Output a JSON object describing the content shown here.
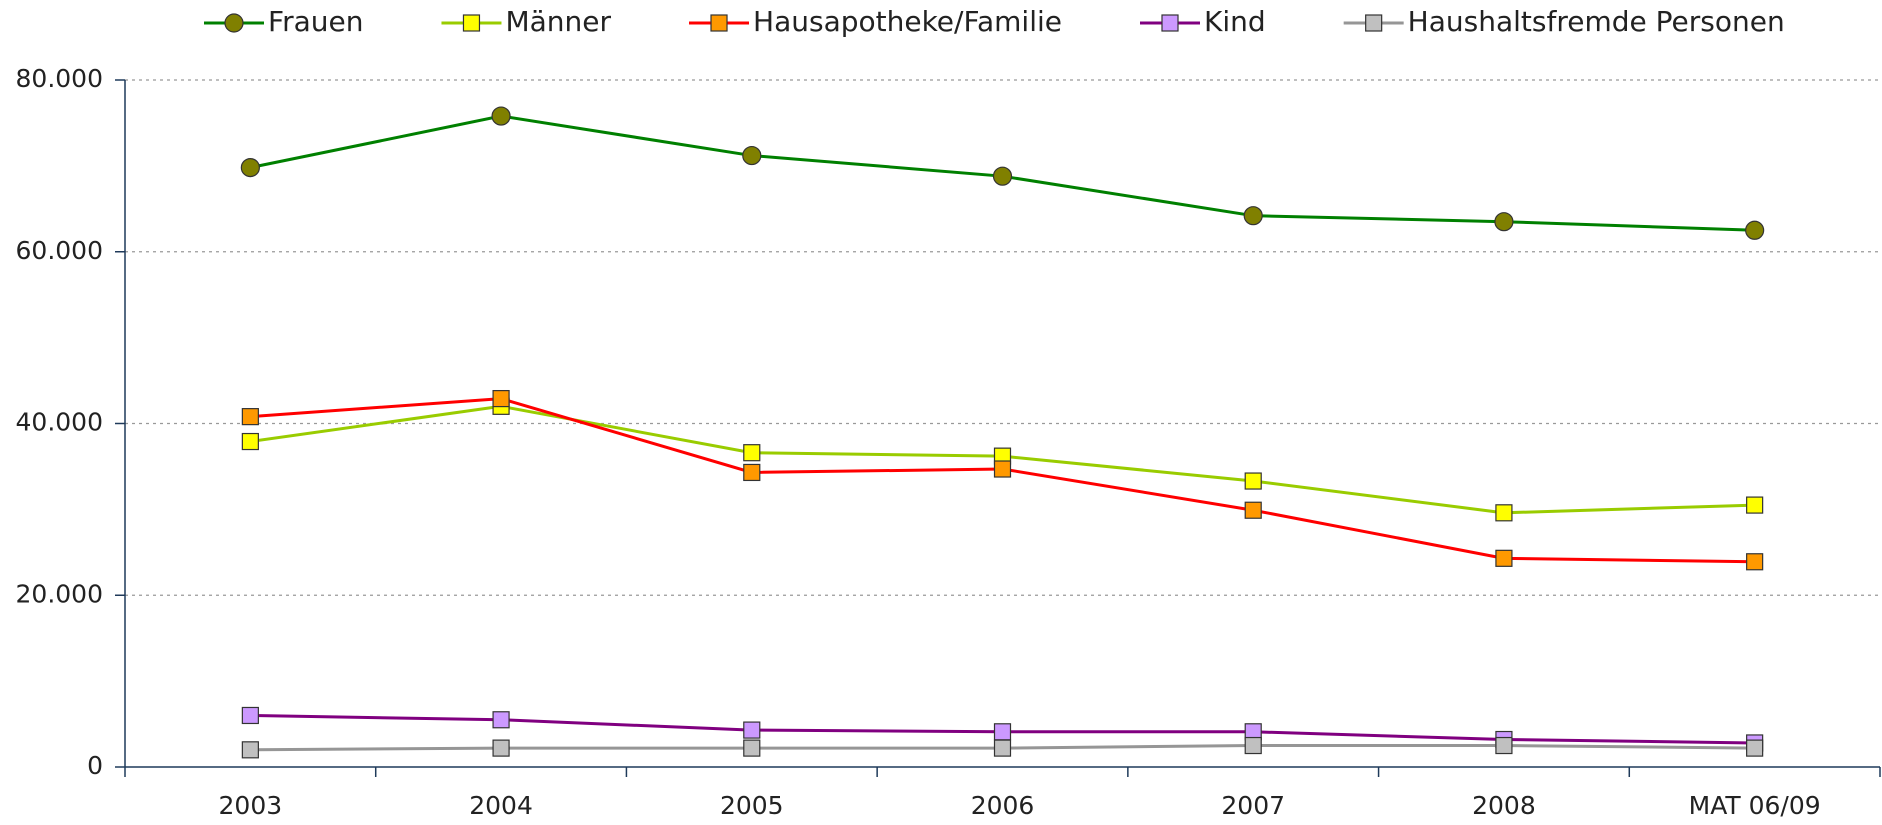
{
  "chart_data": {
    "type": "line",
    "categories": [
      "2003",
      "2004",
      "2005",
      "2006",
      "2007",
      "2008",
      "MAT 06/09"
    ],
    "series": [
      {
        "name": "Frauen",
        "color": "#008000",
        "marker": "circle",
        "marker_color": "#808000",
        "values": [
          69800,
          75800,
          71200,
          68800,
          64200,
          63500,
          62500
        ]
      },
      {
        "name": "Männer",
        "color": "#99cc00",
        "marker": "square",
        "marker_color": "#ffff00",
        "values": [
          37900,
          42000,
          36600,
          36200,
          33300,
          29600,
          30500
        ]
      },
      {
        "name": "Hausapotheke/Familie",
        "color": "#ff0000",
        "marker": "square",
        "marker_color": "#ff9900",
        "values": [
          40800,
          42900,
          34300,
          34700,
          29900,
          24300,
          23900
        ]
      },
      {
        "name": "Kind",
        "color": "#800080",
        "marker": "square",
        "marker_color": "#cc99ff",
        "values": [
          6000,
          5500,
          4300,
          4100,
          4100,
          3200,
          2800
        ]
      },
      {
        "name": "Haushaltsfremde Personen",
        "color": "#969696",
        "marker": "square",
        "marker_color": "#c0c0c0",
        "values": [
          2000,
          2200,
          2200,
          2200,
          2500,
          2500,
          2200
        ]
      }
    ],
    "ylim": [
      0,
      80000
    ],
    "yticks": [
      0,
      {
        "value": 20000,
        "label": "20.000"
      },
      {
        "value": 40000,
        "label": "40.000"
      },
      {
        "value": 60000,
        "label": "60.000"
      },
      {
        "value": 80000,
        "label": "80.000"
      }
    ],
    "grid": true,
    "legend": "top"
  }
}
